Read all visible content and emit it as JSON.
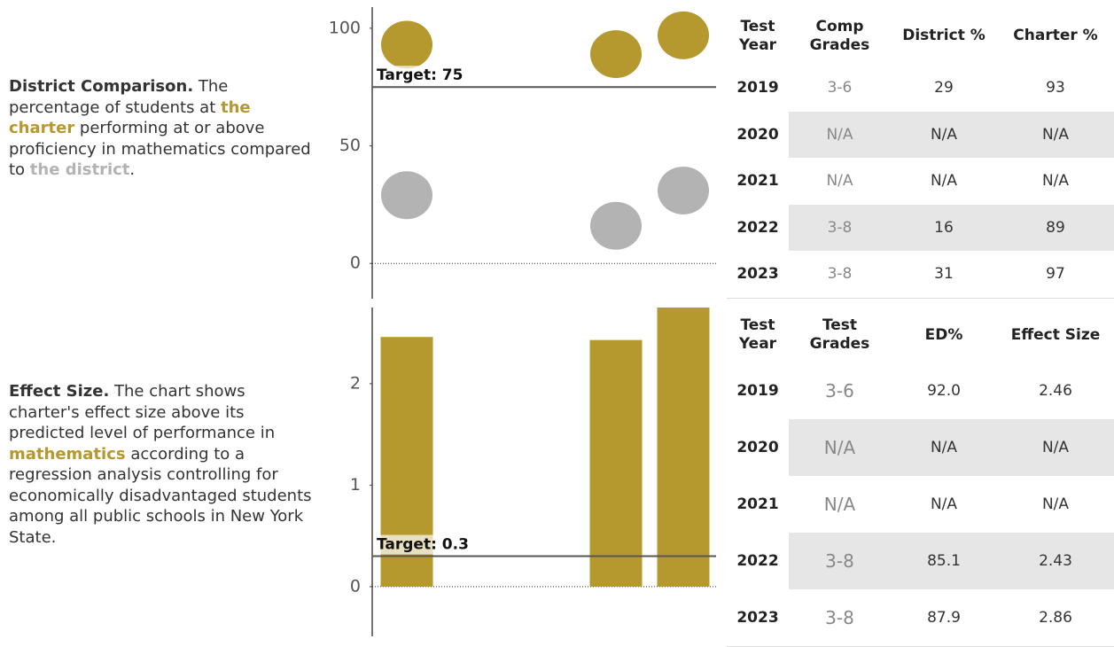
{
  "panels": [
    {
      "parts": [
        {
          "text": "District Comparison.",
          "style": "bold"
        },
        {
          "text": " The percentage of students at "
        },
        {
          "text": "the charter",
          "style": "gold"
        },
        {
          "text": " performing at or above proficiency in mathematics compared to "
        },
        {
          "text": "the district",
          "style": "gray"
        },
        {
          "text": "."
        }
      ]
    },
    {
      "parts": [
        {
          "text": "Effect Size.",
          "style": "bold"
        },
        {
          "text": " The chart shows charter's effect size above its predicted level of performance in "
        },
        {
          "text": "mathematics",
          "style": "gold"
        },
        {
          "text": " according to a regression analysis controlling for economically disadvantaged students among all public schools in New York State."
        }
      ]
    }
  ],
  "chart_data": [
    {
      "type": "scatter",
      "categories": [
        null,
        null,
        null,
        null,
        null
      ],
      "series": [
        {
          "name": "the district",
          "color": "#b3b3b3",
          "values": [
            29,
            null,
            null,
            16,
            31
          ]
        },
        {
          "name": "the charter",
          "color": "#b5982e",
          "values": [
            93,
            null,
            null,
            89,
            97
          ]
        }
      ],
      "ylim": [
        -15,
        109
      ],
      "yticks": [
        0,
        50,
        100
      ],
      "target": 75,
      "target_label": "Target: 75"
    },
    {
      "type": "bar",
      "categories": [
        null,
        null,
        null,
        null,
        null
      ],
      "series": [
        {
          "name": "Effect Size",
          "color": "#b5982e",
          "values": [
            2.46,
            null,
            null,
            2.43,
            2.86
          ]
        }
      ],
      "ylim": [
        -0.49,
        2.75
      ],
      "yticks": [
        0,
        1,
        2
      ],
      "target": 0.3,
      "target_label": "Target: 0.3"
    }
  ],
  "tables": [
    {
      "header": [
        "Test Year",
        "Comp Grades",
        "District %",
        "Charter %"
      ],
      "rows": [
        [
          "2019",
          "3-6",
          "29",
          "93"
        ],
        [
          "2020",
          "N/A",
          "N/A",
          "N/A"
        ],
        [
          "2021",
          "N/A",
          "N/A",
          "N/A"
        ],
        [
          "2022",
          "3-8",
          "16",
          "89"
        ],
        [
          "2023",
          "3-8",
          "31",
          "97"
        ]
      ]
    },
    {
      "header": [
        "Test Year",
        "Test Grades",
        "ED%",
        "Effect Size"
      ],
      "rows": [
        [
          "2019",
          "3-6",
          "92.0",
          "2.46"
        ],
        [
          "2020",
          "N/A",
          "N/A",
          "N/A"
        ],
        [
          "2021",
          "N/A",
          "N/A",
          "N/A"
        ],
        [
          "2022",
          "3-8",
          "85.1",
          "2.43"
        ],
        [
          "2023",
          "3-8",
          "87.9",
          "2.86"
        ]
      ]
    }
  ]
}
